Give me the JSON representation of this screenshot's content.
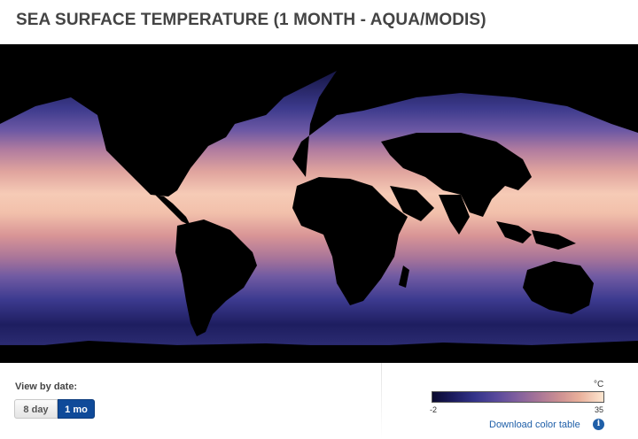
{
  "header": {
    "title": "SEA SURFACE TEMPERATURE (1 MONTH - AQUA/MODIS)"
  },
  "controls": {
    "view_label": "View by date:",
    "buttons": [
      {
        "label": "8 day",
        "selected": false
      },
      {
        "label": "1 mo",
        "selected": true
      }
    ]
  },
  "legend": {
    "unit": "°C",
    "min": "-2",
    "max": "35",
    "colors": [
      "#0a0a2e",
      "#34348a",
      "#82609e",
      "#cc8f92",
      "#fde6d0"
    ],
    "download_link": "Download color table",
    "info_icon": "info-icon"
  },
  "map": {
    "icon": "global-sst-map"
  }
}
